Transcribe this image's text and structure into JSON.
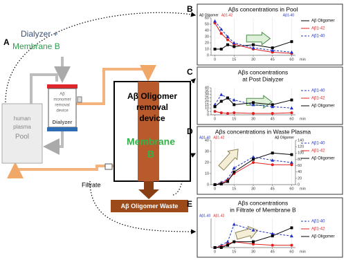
{
  "diagram": {
    "panel_labels": [
      "A",
      "B",
      "C",
      "D",
      "E"
    ],
    "dialyzer_plus": "Dialyzer +",
    "membrane_b": "Membrane B",
    "monomer_device": [
      "Aβ",
      "monomer",
      "removal",
      "device"
    ],
    "dialyzer": "Dialyzer",
    "pool": [
      "human",
      "plasma",
      "Pool"
    ],
    "oligomer_device": [
      "Aβ Oligomer",
      "removal",
      "device"
    ],
    "membrane_b_large": [
      "Membrane",
      "B"
    ],
    "filtrate": "Filtrate",
    "waste": "Aβ Oligomer Waste"
  },
  "chart_data": [
    {
      "type": "line",
      "title": [
        "Aβs concentrations in Pool"
      ],
      "x": [
        0,
        5,
        10,
        15,
        30,
        45,
        60
      ],
      "xlim": [
        -3,
        63
      ],
      "xticks": [
        0,
        15,
        30,
        45,
        60
      ],
      "x_unit": "min",
      "grid": true,
      "ylim": [
        0,
        60
      ],
      "yticks": [
        0,
        10,
        20,
        30,
        40,
        50,
        60
      ],
      "axis_labels": [
        {
          "text": "Aβ Oligomer",
          "color": "#000000",
          "side": "left"
        },
        {
          "text": "Aβ1-42",
          "color": "#e02020",
          "side": "left"
        },
        {
          "text": "Aβ1-40",
          "color": "#2030c0",
          "side": "right"
        }
      ],
      "series": [
        {
          "name": "Aβ Oligomer",
          "color": "#000000",
          "marker": "square",
          "dashed": false,
          "values": [
            10,
            10,
            17,
            14,
            17,
            12,
            22
          ]
        },
        {
          "name": "Aβ1-42",
          "color": "#e02020",
          "marker": "circle",
          "dashed": false,
          "values": [
            52,
            35,
            25,
            18,
            10,
            5,
            3
          ]
        },
        {
          "name": "Aβ1-40",
          "color": "#2030c0",
          "marker": "triangle",
          "dashed": true,
          "values": [
            55,
            42,
            30,
            20,
            12,
            8,
            5
          ]
        }
      ]
    },
    {
      "type": "line",
      "title": [
        "Aβs concentrations",
        "at Post Dialyzer"
      ],
      "x": [
        0,
        5,
        10,
        15,
        30,
        45,
        60
      ],
      "xlim": [
        -3,
        63
      ],
      "xticks": [
        0,
        15,
        30,
        45,
        60
      ],
      "x_unit": "min",
      "grid": true,
      "ylim": [
        0,
        40
      ],
      "yticks": [
        0,
        5,
        10,
        15,
        20,
        25,
        30,
        35,
        40
      ],
      "series": [
        {
          "name": "Aβ1-40",
          "color": "#2030c0",
          "marker": "triangle",
          "dashed": true,
          "values": [
            15,
            30,
            25,
            22,
            15,
            12,
            10
          ]
        },
        {
          "name": "Aβ1-42",
          "color": "#e02020",
          "marker": "circle",
          "dashed": false,
          "values": [
            5,
            3,
            2,
            3,
            2,
            2,
            3
          ]
        },
        {
          "name": "Aβ Oligomer",
          "color": "#000000",
          "marker": "square",
          "dashed": false,
          "values": [
            12,
            20,
            25,
            15,
            18,
            15,
            22
          ]
        }
      ]
    },
    {
      "type": "line",
      "title": [
        "Aβs concentrations in Waste Plasma"
      ],
      "x": [
        0,
        5,
        10,
        15,
        30,
        45,
        60
      ],
      "xlim": [
        -3,
        63
      ],
      "xticks": [
        0,
        15,
        30,
        45,
        60
      ],
      "x_unit": "min",
      "grid": true,
      "ylim": [
        0,
        40
      ],
      "yticks": [
        0,
        10,
        20,
        30,
        40
      ],
      "y2lim": [
        0,
        140
      ],
      "y2ticks": [
        0,
        20,
        40,
        60,
        80,
        100,
        120,
        140
      ],
      "axis_labels": [
        {
          "text": "Aβ1-40",
          "color": "#2030c0",
          "side": "left"
        },
        {
          "text": "Aβ1-42",
          "color": "#e02020",
          "side": "left"
        },
        {
          "text": "Aβ Oligomer",
          "color": "#000000",
          "side": "right"
        }
      ],
      "series": [
        {
          "name": "Aβ1-40",
          "color": "#2030c0",
          "marker": "triangle",
          "dashed": true,
          "values": [
            0,
            2,
            5,
            15,
            25,
            22,
            20
          ]
        },
        {
          "name": "Aβ1-42",
          "color": "#e02020",
          "marker": "circle",
          "dashed": false,
          "values": [
            0,
            1,
            4,
            10,
            20,
            18,
            18
          ]
        },
        {
          "name": "Aβ Oligomer",
          "color": "#000000",
          "marker": "square",
          "dashed": false,
          "axis": "y2",
          "values": [
            0,
            2,
            10,
            40,
            80,
            100,
            95
          ]
        }
      ]
    },
    {
      "type": "line",
      "title": [
        "Aβs concentrations",
        "in Filtrate of Membrane B"
      ],
      "x": [
        0,
        5,
        10,
        15,
        30,
        45,
        60
      ],
      "xlim": [
        -3,
        63
      ],
      "xticks": [
        0,
        15,
        30,
        45,
        60
      ],
      "x_unit": "min",
      "grid": true,
      "ylim": [
        0,
        25
      ],
      "axis_labels": [
        {
          "text": "Aβ1-40",
          "color": "#2030c0",
          "side": "left"
        },
        {
          "text": "Aβ1-42",
          "color": "#e02020",
          "side": "left"
        }
      ],
      "series": [
        {
          "name": "Aβ1-40",
          "color": "#2030c0",
          "marker": "triangle",
          "dashed": true,
          "values": [
            0,
            2,
            5,
            20,
            15,
            12,
            10
          ]
        },
        {
          "name": "Aβ1-42",
          "color": "#e02020",
          "marker": "circle",
          "dashed": false,
          "values": [
            0,
            1,
            3,
            5,
            3,
            2,
            2
          ]
        },
        {
          "name": "Aβ Oligomer",
          "color": "#000000",
          "marker": "square",
          "dashed": false,
          "values": [
            0,
            0,
            2,
            5,
            5,
            10,
            17
          ]
        }
      ]
    }
  ]
}
